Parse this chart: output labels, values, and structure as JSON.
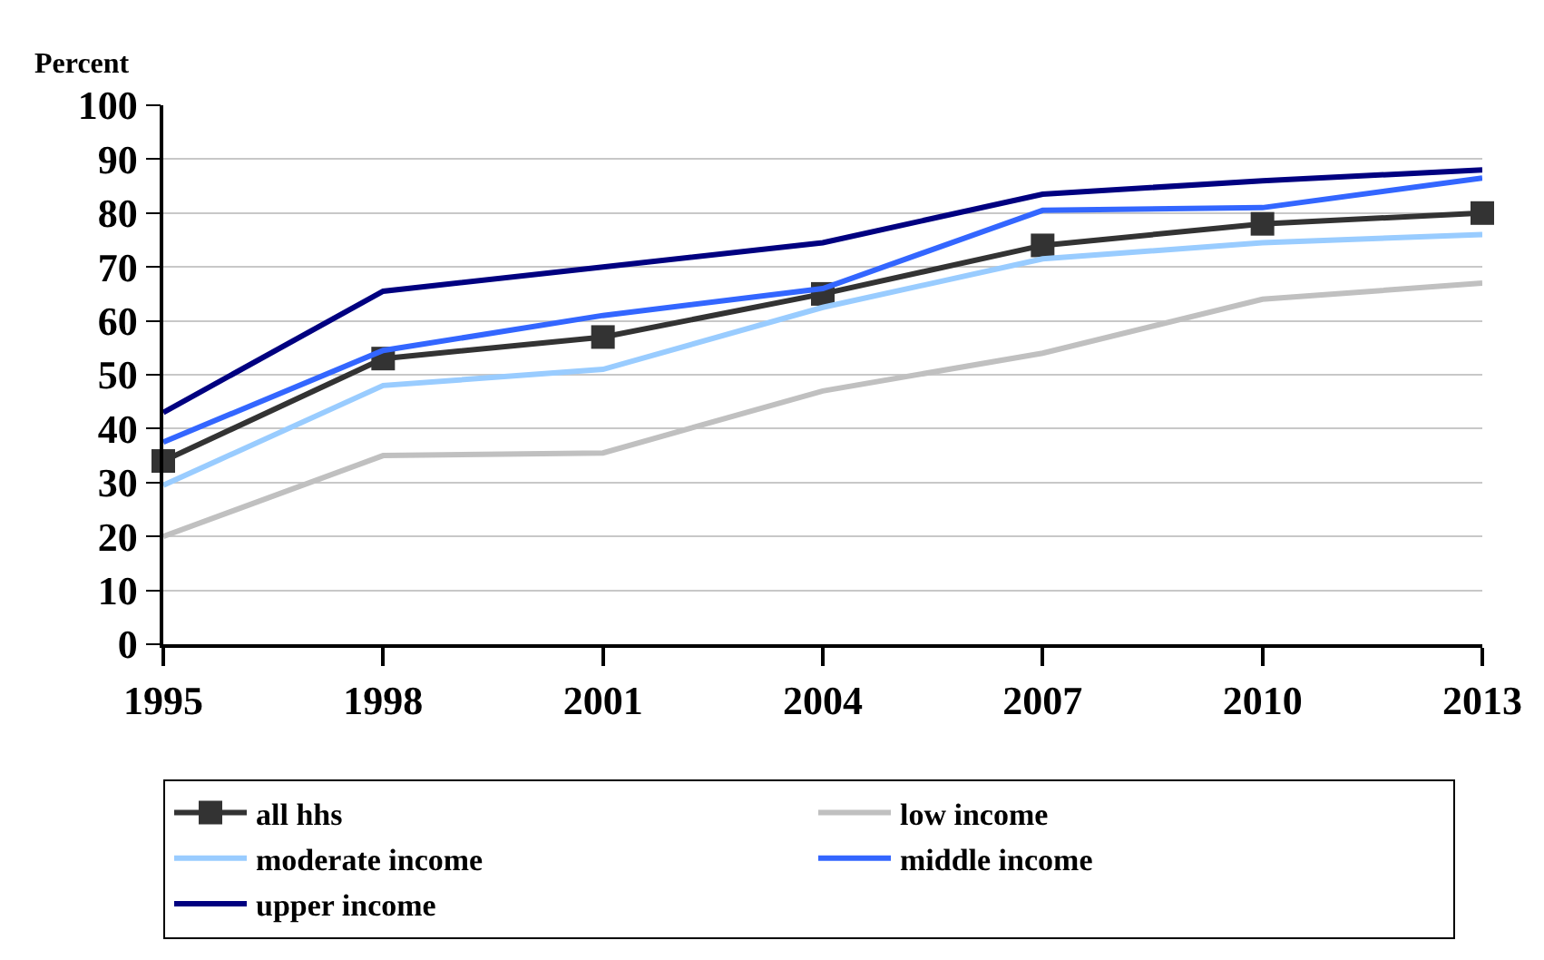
{
  "chart_data": {
    "type": "line",
    "ylabel": "Percent",
    "x": [
      1995,
      1998,
      2001,
      2004,
      2007,
      2010,
      2013
    ],
    "xlim": [
      1995,
      2013
    ],
    "xticks": [
      1995,
      1998,
      2001,
      2004,
      2007,
      2010,
      2013
    ],
    "ylim": [
      0,
      100
    ],
    "yticks": [
      0,
      10,
      20,
      30,
      40,
      50,
      60,
      70,
      80,
      90,
      100
    ],
    "grid": "y",
    "legend": "bottom",
    "line_style": "solid",
    "series": [
      {
        "name": "all hhs",
        "color": "#333333",
        "marker": "square",
        "values": [
          34,
          53,
          57,
          65,
          74,
          78,
          80
        ]
      },
      {
        "name": "low income",
        "color": "#c0c0c0",
        "values": [
          20,
          35,
          35.5,
          47,
          54,
          64,
          67
        ]
      },
      {
        "name": "moderate income",
        "color": "#99ccff",
        "values": [
          29.5,
          48,
          51,
          62.5,
          71.5,
          74.5,
          76
        ]
      },
      {
        "name": "middle income",
        "color": "#3366ff",
        "values": [
          37.5,
          54.5,
          61,
          66,
          80.5,
          81,
          86.5
        ]
      },
      {
        "name": "upper income",
        "color": "#000080",
        "values": [
          43,
          65.5,
          70,
          74.5,
          83.5,
          86,
          88
        ]
      }
    ]
  }
}
